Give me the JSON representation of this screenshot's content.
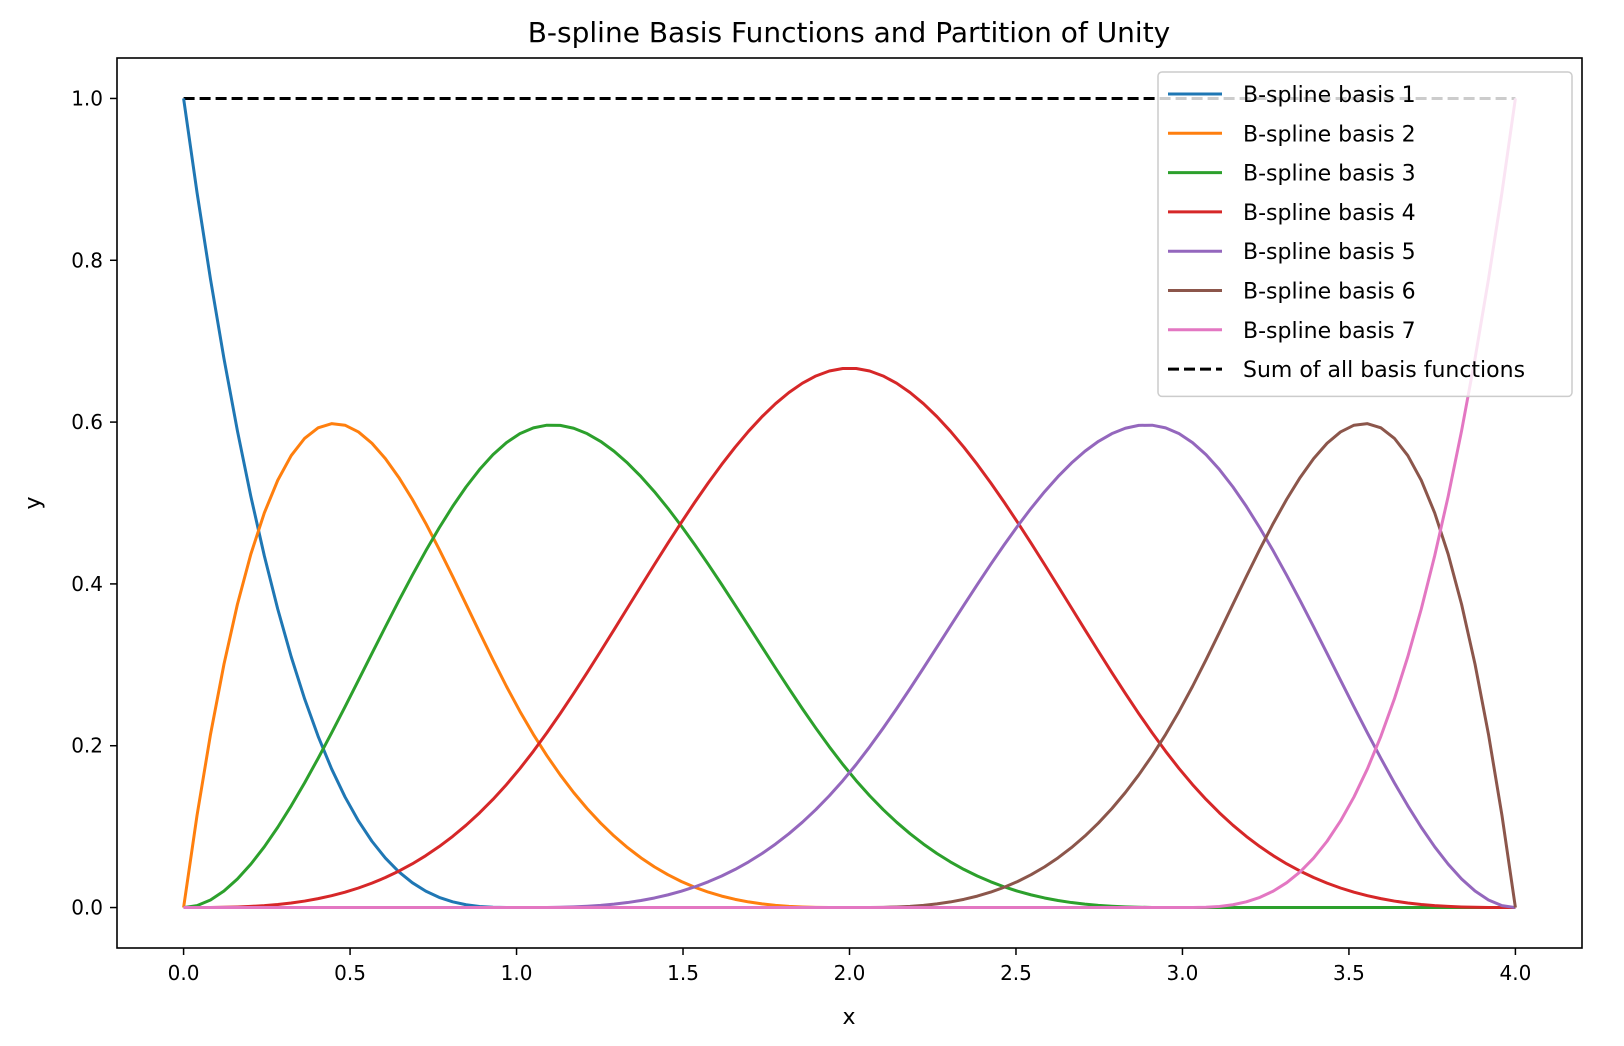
{
  "chart_data": {
    "type": "line",
    "title": "B-spline Basis Functions and Partition of Unity",
    "xlabel": "x",
    "ylabel": "y",
    "xlim": [
      -0.2,
      4.2
    ],
    "ylim": [
      -0.05,
      1.05
    ],
    "xticks": [
      "0.0",
      "0.5",
      "1.0",
      "1.5",
      "2.0",
      "2.5",
      "3.0",
      "3.5",
      "4.0"
    ],
    "yticks": [
      "0.0",
      "0.2",
      "0.4",
      "0.6",
      "0.8",
      "1.0"
    ],
    "grid": false,
    "legend_position": "top-right",
    "knots": [
      0,
      0,
      0,
      0,
      1,
      2,
      3,
      4,
      4,
      4,
      4
    ],
    "degree": 3,
    "x_domain": [
      0,
      4
    ],
    "series": [
      {
        "name": "B-spline basis 1",
        "color": "#1f77b4",
        "style": "solid"
      },
      {
        "name": "B-spline basis 2",
        "color": "#ff7f0e",
        "style": "solid"
      },
      {
        "name": "B-spline basis 3",
        "color": "#2ca02c",
        "style": "solid"
      },
      {
        "name": "B-spline basis 4",
        "color": "#d62728",
        "style": "solid"
      },
      {
        "name": "B-spline basis 5",
        "color": "#9467bd",
        "style": "solid"
      },
      {
        "name": "B-spline basis 6",
        "color": "#8c564b",
        "style": "solid"
      },
      {
        "name": "B-spline basis 7",
        "color": "#e377c2",
        "style": "solid"
      },
      {
        "name": "Sum of all basis functions",
        "color": "#000000",
        "style": "dashed"
      }
    ]
  }
}
